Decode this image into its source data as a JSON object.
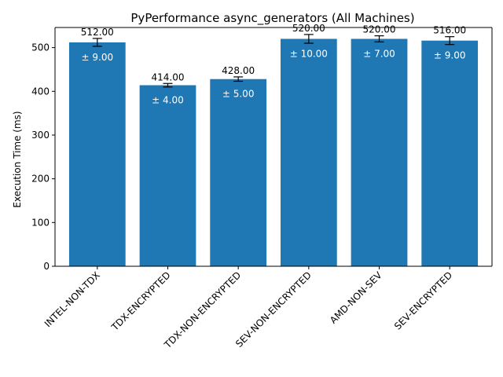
{
  "chart_data": {
    "type": "bar",
    "title": "PyPerformance async_generators (All Machines)",
    "xlabel": "",
    "ylabel": "Execution Time (ms)",
    "categories": [
      "INTEL-NON-TDX",
      "TDX-ENCRYPTED",
      "TDX-NON-ENCRYPTED",
      "SEV-NON-ENCRYPTED",
      "AMD-NON-SEV",
      "SEV-ENCRYPTED"
    ],
    "values": [
      512.0,
      414.0,
      428.0,
      520.0,
      520.0,
      516.0
    ],
    "errors": [
      9.0,
      4.0,
      5.0,
      10.0,
      7.0,
      9.0
    ],
    "value_labels": [
      "512.00",
      "414.00",
      "428.00",
      "520.00",
      "520.00",
      "516.00"
    ],
    "error_labels": [
      "± 9.00",
      "± 4.00",
      "± 5.00",
      "± 10.00",
      "± 7.00",
      "± 9.00"
    ],
    "ylim": [
      0,
      546
    ],
    "yticks": [
      0,
      100,
      200,
      300,
      400,
      500
    ],
    "bar_color": "#1f77b4",
    "grid": false,
    "legend": "none"
  }
}
